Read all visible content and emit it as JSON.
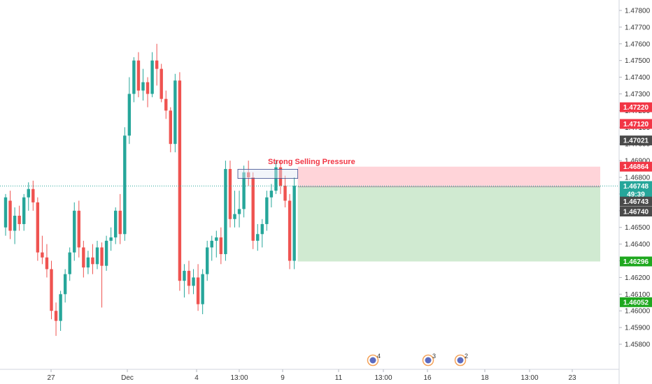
{
  "chart_data": {
    "type": "candlestick",
    "title": "",
    "ylim": [
      1.4575,
      1.4785
    ],
    "x_tick_labels": [
      "27",
      "Dec",
      "4",
      "13:00",
      "9",
      "11",
      "13:00",
      "16",
      "18",
      "13:00",
      "23"
    ],
    "y_tick_labels": [
      "1.47800",
      "1.47700",
      "1.47600",
      "1.47500",
      "1.47400",
      "1.47300",
      "1.47200",
      "1.47100",
      "1.47000",
      "1.46900",
      "1.46800",
      "1.46700",
      "1.46600",
      "1.46500",
      "1.46400",
      "1.46300",
      "1.46200",
      "1.46100",
      "1.46000",
      "1.45900",
      "1.45800"
    ],
    "y_tick_values": [
      1.478,
      1.477,
      1.476,
      1.475,
      1.474,
      1.473,
      1.472,
      1.471,
      1.47,
      1.469,
      1.468,
      1.467,
      1.466,
      1.465,
      1.464,
      1.463,
      1.462,
      1.461,
      1.46,
      1.459,
      1.458
    ],
    "candles": [
      [
        1.465,
        1.467,
        1.4645,
        1.4668
      ],
      [
        1.4666,
        1.4672,
        1.4643,
        1.4648
      ],
      [
        1.4648,
        1.4662,
        1.464,
        1.4657
      ],
      [
        1.4657,
        1.4663,
        1.4648,
        1.4652
      ],
      [
        1.4652,
        1.467,
        1.4648,
        1.4668
      ],
      [
        1.4668,
        1.4677,
        1.466,
        1.4673
      ],
      [
        1.4673,
        1.4678,
        1.466,
        1.4665
      ],
      [
        1.4665,
        1.4668,
        1.463,
        1.4635
      ],
      [
        1.4635,
        1.4645,
        1.4628,
        1.4632
      ],
      [
        1.4632,
        1.464,
        1.462,
        1.4625
      ],
      [
        1.4625,
        1.463,
        1.4595,
        1.46
      ],
      [
        1.46,
        1.4605,
        1.4585,
        1.4594
      ],
      [
        1.4594,
        1.4612,
        1.4588,
        1.461
      ],
      [
        1.461,
        1.4625,
        1.4605,
        1.4622
      ],
      [
        1.4622,
        1.4638,
        1.4618,
        1.4635
      ],
      [
        1.4635,
        1.4665,
        1.463,
        1.466
      ],
      [
        1.466,
        1.4666,
        1.4632,
        1.4638
      ],
      [
        1.4638,
        1.4642,
        1.462,
        1.4626
      ],
      [
        1.4626,
        1.4636,
        1.4622,
        1.4632
      ],
      [
        1.4632,
        1.464,
        1.4622,
        1.4628
      ],
      [
        1.4628,
        1.4642,
        1.4625,
        1.4638
      ],
      [
        1.4638,
        1.4641,
        1.4602,
        1.4627
      ],
      [
        1.4627,
        1.4645,
        1.4624,
        1.4642
      ],
      [
        1.4642,
        1.465,
        1.4636,
        1.4644
      ],
      [
        1.4644,
        1.4662,
        1.464,
        1.466
      ],
      [
        1.466,
        1.467,
        1.464,
        1.4646
      ],
      [
        1.4646,
        1.471,
        1.4642,
        1.4705
      ],
      [
        1.4705,
        1.474,
        1.47,
        1.473
      ],
      [
        1.473,
        1.4752,
        1.4725,
        1.475
      ],
      [
        1.475,
        1.4755,
        1.4728,
        1.4732
      ],
      [
        1.4732,
        1.4745,
        1.4726,
        1.4737
      ],
      [
        1.4737,
        1.474,
        1.4722,
        1.473
      ],
      [
        1.473,
        1.4755,
        1.4728,
        1.475
      ],
      [
        1.475,
        1.476,
        1.4735,
        1.4745
      ],
      [
        1.4745,
        1.4748,
        1.4725,
        1.4727
      ],
      [
        1.4727,
        1.4732,
        1.4715,
        1.472
      ],
      [
        1.472,
        1.4722,
        1.4695,
        1.47
      ],
      [
        1.47,
        1.4742,
        1.4695,
        1.4738
      ],
      [
        1.4738,
        1.4743,
        1.4612,
        1.4618
      ],
      [
        1.4618,
        1.4628,
        1.4608,
        1.4624
      ],
      [
        1.4624,
        1.463,
        1.461,
        1.4615
      ],
      [
        1.4615,
        1.4625,
        1.461,
        1.462
      ],
      [
        1.462,
        1.4628,
        1.46,
        1.4604
      ],
      [
        1.4604,
        1.4625,
        1.4598,
        1.4622
      ],
      [
        1.4622,
        1.4642,
        1.4618,
        1.4638
      ],
      [
        1.4638,
        1.4645,
        1.463,
        1.4642
      ],
      [
        1.4642,
        1.4648,
        1.4632,
        1.4644
      ],
      [
        1.4644,
        1.465,
        1.4628,
        1.4634
      ],
      [
        1.4634,
        1.469,
        1.463,
        1.4685
      ],
      [
        1.4685,
        1.469,
        1.465,
        1.4655
      ],
      [
        1.4655,
        1.4672,
        1.465,
        1.4658
      ],
      [
        1.4658,
        1.4672,
        1.465,
        1.4661
      ],
      [
        1.4661,
        1.4687,
        1.4656,
        1.4683
      ],
      [
        1.4683,
        1.469,
        1.4675,
        1.468
      ],
      [
        1.468,
        1.4683,
        1.4637,
        1.4642
      ],
      [
        1.4642,
        1.4652,
        1.4636,
        1.4646
      ],
      [
        1.4646,
        1.4655,
        1.4638,
        1.4652
      ],
      [
        1.4652,
        1.4672,
        1.4648,
        1.4668
      ],
      [
        1.4668,
        1.4676,
        1.4662,
        1.4672
      ],
      [
        1.4672,
        1.469,
        1.467,
        1.4686
      ],
      [
        1.4686,
        1.469,
        1.467,
        1.4675
      ],
      [
        1.4675,
        1.4681,
        1.4662,
        1.4666
      ],
      [
        1.4666,
        1.467,
        1.4625,
        1.463
      ],
      [
        1.463,
        1.468,
        1.4625,
        1.4675
      ]
    ],
    "annotation": "Strong Selling Pressure",
    "resistance_zone": [
      1.4681,
      1.4684
    ],
    "current_price_line": 1.46748,
    "position": {
      "entry": 1.46743,
      "stop": 1.46864,
      "target": 1.46296
    },
    "price_tags": [
      {
        "label": "1.47220",
        "value": 1.4722,
        "color": "#f23645"
      },
      {
        "label": "1.47120",
        "value": 1.4712,
        "color": "#f23645"
      },
      {
        "label": "1.47021",
        "value": 1.47021,
        "color": "#4a4a4a"
      },
      {
        "label": "1.46864",
        "value": 1.46864,
        "color": "#f23645"
      },
      {
        "label": "1.46748",
        "value": 1.46748,
        "color": "#26a69a"
      },
      {
        "label": "49:39",
        "value": 1.467,
        "color": "#26a69a"
      },
      {
        "label": "1.46743",
        "value": 1.46655,
        "color": "#4a4a4a"
      },
      {
        "label": "1.46740",
        "value": 1.46595,
        "color": "#4a4a4a"
      },
      {
        "label": "1.46296",
        "value": 1.46296,
        "color": "#1ea81e"
      },
      {
        "label": "1.46052",
        "value": 1.46052,
        "color": "#1ea81e"
      }
    ],
    "events": [
      {
        "label": "4",
        "x_index": 0
      },
      {
        "label": "3",
        "x_index": 1
      },
      {
        "label": "2",
        "x_index": 2
      }
    ],
    "colors": {
      "up": "#26a69a",
      "down": "#ef5350",
      "stop_zone": "#ffcdd2",
      "target_zone": "#c8e6c9",
      "annotation": "#f23645",
      "price_line": "#26a69a"
    }
  }
}
